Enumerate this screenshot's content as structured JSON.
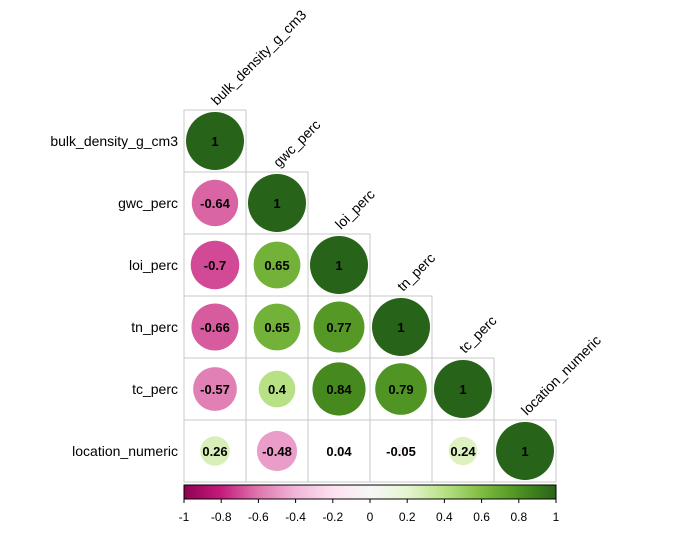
{
  "chart_data": {
    "type": "heatmap",
    "variables": [
      "bulk_density_g_cm3",
      "gwc_perc",
      "loi_perc",
      "tn_perc",
      "tc_perc",
      "location_numeric"
    ],
    "matrix": [
      [
        1,
        null,
        null,
        null,
        null,
        null
      ],
      [
        -0.64,
        1,
        null,
        null,
        null,
        null
      ],
      [
        -0.7,
        0.65,
        1,
        null,
        null,
        null
      ],
      [
        -0.66,
        0.65,
        0.77,
        1,
        null,
        null
      ],
      [
        -0.57,
        0.4,
        0.84,
        0.79,
        1,
        null
      ],
      [
        0.26,
        -0.48,
        0.04,
        -0.05,
        0.24,
        1
      ]
    ],
    "value_labels": [
      [
        "1"
      ],
      [
        "-0.64",
        "1"
      ],
      [
        "-0.7",
        "0.65",
        "1"
      ],
      [
        "-0.66",
        "0.65",
        "0.77",
        "1"
      ],
      [
        "-0.57",
        "0.4",
        "0.84",
        "0.79",
        "1"
      ],
      [
        "0.26",
        "-0.48",
        "0.04",
        "-0.05",
        "0.24",
        "1"
      ]
    ],
    "colorbar": {
      "range": [
        -1,
        1
      ],
      "ticks": [
        "-1",
        "-0.8",
        "-0.6",
        "-0.4",
        "-0.2",
        "0",
        "0.2",
        "0.4",
        "0.6",
        "0.8",
        "1"
      ],
      "colors": [
        "#8e0152",
        "#c51b7d",
        "#de77ae",
        "#f1b6da",
        "#fde0ef",
        "#f7f7f7",
        "#e6f5d0",
        "#b8e186",
        "#7fbc41",
        "#4d9221",
        "#276419"
      ]
    },
    "shape": "circle",
    "layout": "lower-triangle"
  }
}
